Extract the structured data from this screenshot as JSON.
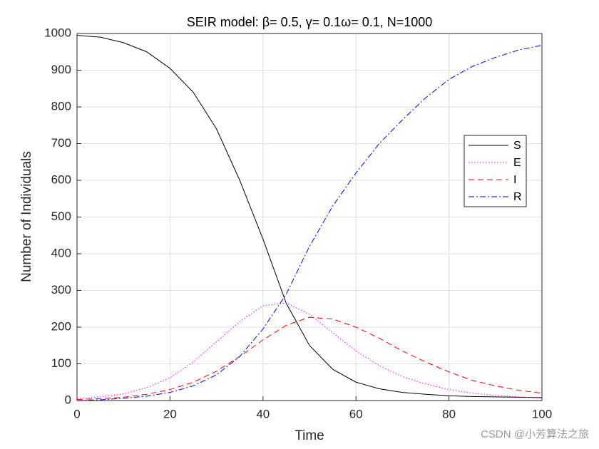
{
  "chart_data": {
    "type": "line",
    "title": "SEIR model: β= 0.5, γ= 0.1ω= 0.1, N=1000",
    "x_label": "Time",
    "y_label": "Number of Individuals",
    "x": [
      0,
      5,
      10,
      15,
      20,
      25,
      30,
      35,
      40,
      45,
      50,
      55,
      60,
      65,
      70,
      75,
      80,
      85,
      90,
      95,
      100
    ],
    "series": [
      {
        "name": "S",
        "color": "#000000",
        "style": "solid",
        "values": [
          995,
          990,
          975,
          950,
          905,
          840,
          740,
          600,
          440,
          265,
          150,
          85,
          50,
          32,
          22,
          17,
          13,
          11,
          10,
          9,
          8
        ]
      },
      {
        "name": "E",
        "color": "#ff00ff",
        "style": "dotted",
        "values": [
          5,
          10,
          18,
          35,
          62,
          105,
          160,
          215,
          258,
          266,
          235,
          185,
          135,
          95,
          65,
          45,
          30,
          20,
          14,
          10,
          7
        ]
      },
      {
        "name": "I",
        "color": "#ff0000",
        "style": "dashed",
        "values": [
          3,
          5,
          9,
          17,
          30,
          50,
          80,
          120,
          165,
          205,
          227,
          222,
          200,
          170,
          135,
          105,
          78,
          55,
          40,
          28,
          20
        ]
      },
      {
        "name": "R",
        "color": "#0000ff",
        "style": "dashdot",
        "values": [
          0,
          2,
          6,
          12,
          22,
          40,
          70,
          120,
          195,
          290,
          420,
          530,
          620,
          700,
          765,
          825,
          875,
          910,
          935,
          955,
          968
        ]
      }
    ],
    "xlim": [
      0,
      100
    ],
    "xticks": [
      0,
      20,
      40,
      60,
      80,
      100
    ],
    "ylim": [
      0,
      1000
    ],
    "yticks": [
      0,
      100,
      200,
      300,
      400,
      500,
      600,
      700,
      800,
      900,
      1000
    ],
    "grid": true,
    "legend": "right",
    "watermark": "CSDN @小芳算法之旅"
  }
}
